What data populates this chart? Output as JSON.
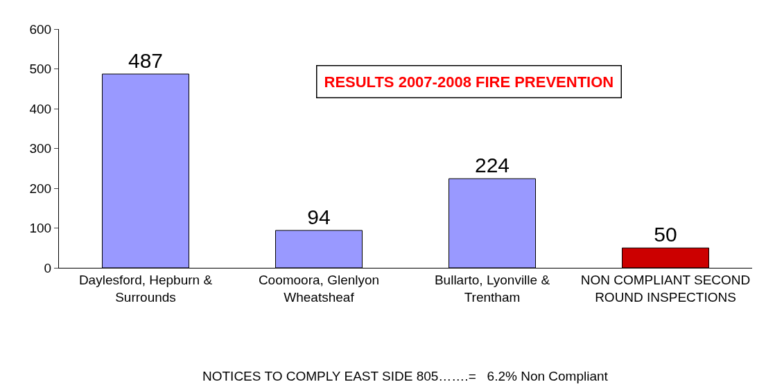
{
  "chart_data": {
    "type": "bar",
    "title": "RESULTS 2007-2008 FIRE PREVENTION",
    "categories": [
      "Daylesford, Hepburn & Surrounds",
      "Coomoora, Glenlyon Wheatsheaf",
      "Bullarto, Lyonville & Trentham",
      "NON COMPLIANT SECOND ROUND INSPECTIONS"
    ],
    "values": [
      487,
      94,
      224,
      50
    ],
    "colors": [
      "#9999ff",
      "#9999ff",
      "#9999ff",
      "#cc0000"
    ],
    "ylim": [
      0,
      600
    ],
    "yticks": [
      0,
      100,
      200,
      300,
      400,
      500,
      600
    ],
    "grid": false,
    "legend": false,
    "data_labels": true,
    "annotations": [
      "NOTICES TO COMPLY EAST SIDE 805…….=   6.2% Non Compliant"
    ]
  }
}
